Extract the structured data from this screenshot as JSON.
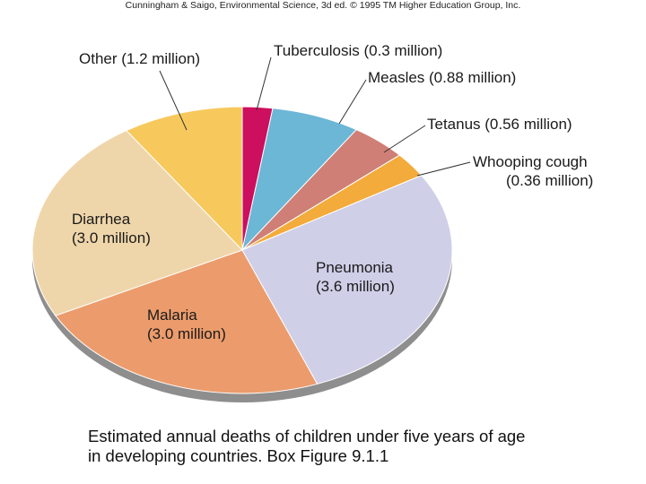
{
  "credit": "Cunningham & Saigo, Environmental Science, 3d ed. © 1995 TM Higher Education Group, Inc.",
  "caption": {
    "line1": "Estimated annual deaths of children under five years of age",
    "line2": "in developing countries. Box Figure 9.1.1"
  },
  "chart_data": {
    "type": "pie",
    "title": "",
    "unit": "million",
    "grid": false,
    "legend": "none",
    "slices": [
      {
        "name": "Tuberculosis",
        "value": 0.3,
        "label_lines": [
          "Tuberculosis (0.3 million)"
        ],
        "color": "#cc0f5e"
      },
      {
        "name": "Measles",
        "value": 0.88,
        "label_lines": [
          "Measles (0.88 million)"
        ],
        "color": "#6cb6d6"
      },
      {
        "name": "Tetanus",
        "value": 0.56,
        "label_lines": [
          "Tetanus (0.56 million)"
        ],
        "color": "#cf7f76"
      },
      {
        "name": "Whooping cough",
        "value": 0.36,
        "label_lines": [
          "Whooping cough",
          "(0.36 million)"
        ],
        "color": "#f3ab3b"
      },
      {
        "name": "Pneumonia",
        "value": 3.6,
        "label_lines": [
          "Pneumonia",
          "(3.6 million)"
        ],
        "color": "#cfcfe8"
      },
      {
        "name": "Malaria",
        "value": 3.0,
        "label_lines": [
          "Malaria",
          "(3.0 million)"
        ],
        "color": "#ec9c6c"
      },
      {
        "name": "Diarrhea",
        "value": 3.0,
        "label_lines": [
          "Diarrhea",
          "(3.0 million)"
        ],
        "color": "#efd6aa"
      },
      {
        "name": "Other",
        "value": 1.2,
        "label_lines": [
          "Other (1.2 million)"
        ],
        "color": "#f7c95d"
      }
    ]
  }
}
